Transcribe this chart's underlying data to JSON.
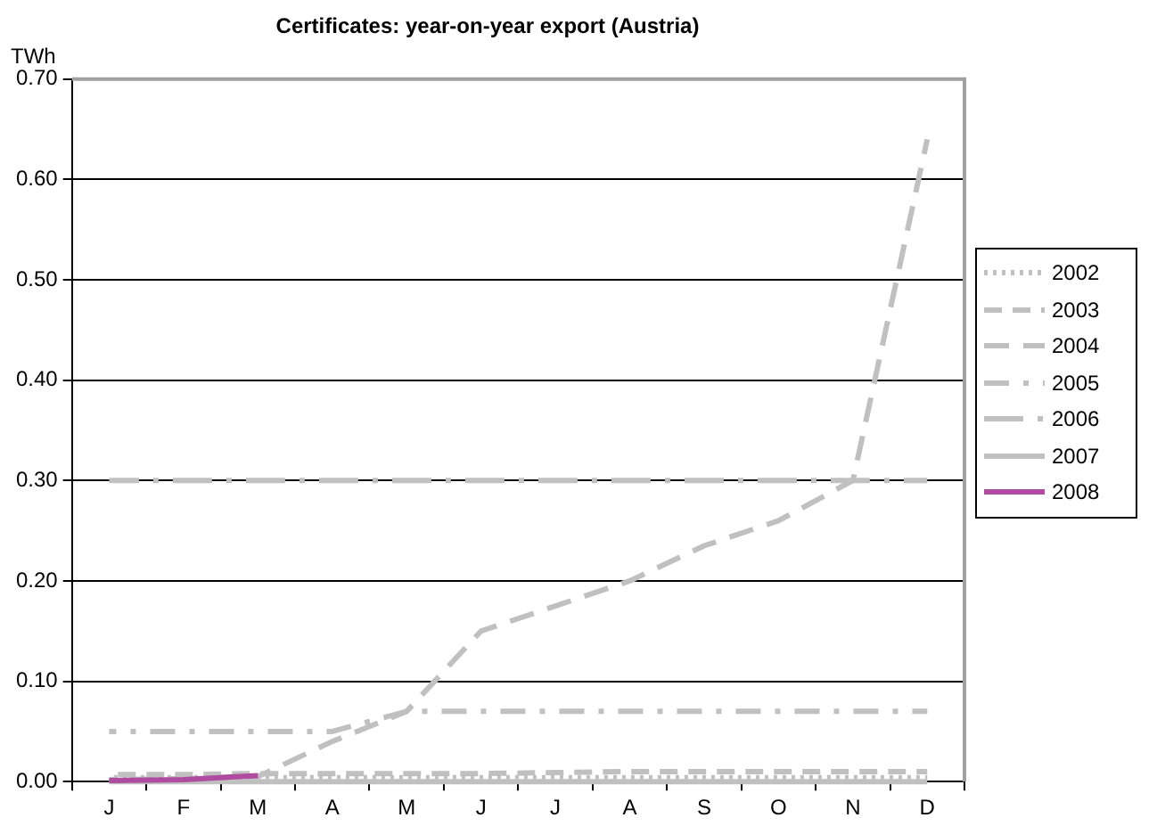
{
  "chart_data": {
    "type": "line",
    "title": "Certificates: year-on-year export (Austria)",
    "ylabel": "TWh",
    "categories": [
      "J",
      "F",
      "M",
      "A",
      "M",
      "J",
      "J",
      "A",
      "S",
      "O",
      "N",
      "D"
    ],
    "series": [
      {
        "name": "2002",
        "color": "#c0c0c0",
        "line_style": "dotted",
        "values": [
          0.004,
          0.004,
          0.004,
          0.004,
          0.004,
          0.004,
          0.004,
          0.004,
          0.004,
          0.004,
          0.004,
          0.004
        ]
      },
      {
        "name": "2003",
        "color": "#c0c0c0",
        "line_style": "dashed",
        "values": [
          0.007,
          0.007,
          0.008,
          0.008,
          0.008,
          0.008,
          0.009,
          0.01,
          0.01,
          0.01,
          0.01,
          0.01
        ]
      },
      {
        "name": "2004",
        "color": "#c0c0c0",
        "line_style": "dashed",
        "values": [
          0.002,
          0.003,
          0.005,
          0.04,
          0.07,
          0.15,
          0.175,
          0.2,
          0.235,
          0.26,
          0.3,
          0.64
        ]
      },
      {
        "name": "2005",
        "color": "#c0c0c0",
        "line_style": "dashed",
        "values": [
          0.05,
          0.05,
          0.05,
          0.05,
          0.07,
          0.07,
          0.07,
          0.07,
          0.07,
          0.07,
          0.07,
          0.07
        ]
      },
      {
        "name": "2006",
        "color": "#c0c0c0",
        "line_style": "dashed",
        "values": [
          0.3,
          0.3,
          0.3,
          0.3,
          0.3,
          0.3,
          0.3,
          0.3,
          0.3,
          0.3,
          0.3,
          0.3
        ]
      },
      {
        "name": "2007",
        "color": "#c0c0c0",
        "line_style": "solid",
        "values": [
          0,
          0,
          0,
          0,
          0,
          0,
          0,
          0,
          0,
          0,
          0,
          0
        ]
      },
      {
        "name": "2008",
        "color": "#b04ca0",
        "line_style": "solid",
        "values": [
          0.001,
          0.002,
          0.006,
          null,
          null,
          null,
          null,
          null,
          null,
          null,
          null,
          null
        ]
      }
    ],
    "ylim": [
      0,
      0.7
    ],
    "yticks": [
      {
        "value": 0,
        "label": "0.00"
      },
      {
        "value": 0.1,
        "label": "0.10"
      },
      {
        "value": 0.2,
        "label": "0.20"
      },
      {
        "value": 0.3,
        "label": "0.30"
      },
      {
        "value": 0.4,
        "label": "0.40"
      },
      {
        "value": 0.5,
        "label": "0.50"
      },
      {
        "value": 0.6,
        "label": "0.60"
      },
      {
        "value": 0.7,
        "label": "0.70"
      }
    ],
    "grid": "y",
    "legend": "right",
    "marker": "none"
  }
}
